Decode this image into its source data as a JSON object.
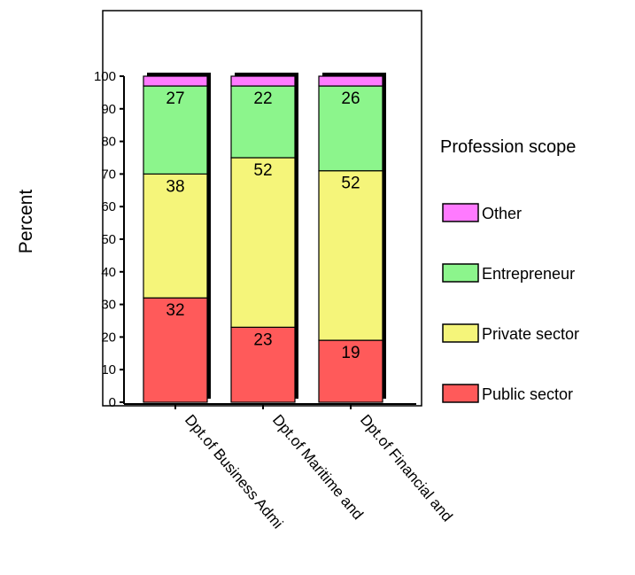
{
  "chart_data": {
    "type": "bar",
    "stacked": true,
    "title": "",
    "ylabel": "Percent",
    "xlabel": "",
    "ylim": [
      0,
      100
    ],
    "yticks": [
      0,
      10,
      20,
      30,
      40,
      50,
      60,
      70,
      80,
      90,
      100
    ],
    "categories": [
      "Dpt.of Business Admi",
      "Dpt.of Maritime and",
      "Dpt.of Financial and"
    ],
    "series": [
      {
        "name": "Public sector",
        "color": "#ff5a5a",
        "values": [
          32,
          23,
          19
        ],
        "labels": [
          "32",
          "23",
          "19"
        ]
      },
      {
        "name": "Private sector",
        "color": "#f5f57a",
        "values": [
          38,
          52,
          52
        ],
        "labels": [
          "38",
          "52",
          "52"
        ]
      },
      {
        "name": "Entrepreneur",
        "color": "#8cf58c",
        "values": [
          27,
          22,
          26
        ],
        "labels": [
          "27",
          "22",
          "26"
        ]
      },
      {
        "name": "Other",
        "color": "#ff7aff",
        "values": [
          3,
          3,
          3
        ],
        "labels": [
          "",
          "",
          ""
        ]
      }
    ],
    "legend": {
      "title": "Profession scope",
      "position": "right"
    },
    "grid": false
  }
}
